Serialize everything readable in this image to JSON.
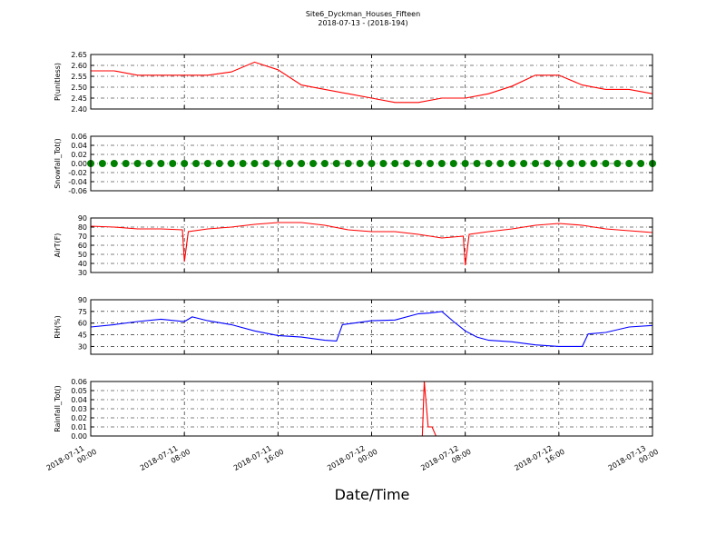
{
  "chart_data": [
    {
      "type": "line",
      "title": "Site6_Dyckman_Houses_Fifteen",
      "subtitle": "2018-07-13 - (2018-194)",
      "ylabel": "P(unitless)",
      "xlim": [
        "2018-07-11 00:00",
        "2018-07-13 00:00"
      ],
      "xticks": [
        "2018-07-11 00:00",
        "2018-07-11 08:00",
        "2018-07-11 16:00",
        "2018-07-12 00:00",
        "2018-07-12 08:00",
        "2018-07-12 16:00",
        "2018-07-13 00:00"
      ],
      "ylim": [
        2.4,
        2.65
      ],
      "yticks": [
        {
          "value": 2.4,
          "label": "2.40"
        },
        2.45,
        {
          "value": 2.5,
          "label": "2.50"
        },
        2.55,
        {
          "value": 2.6,
          "label": "2.60"
        },
        2.65
      ],
      "grid": true,
      "x": [
        "2018-07-11 00:00",
        "2018-07-11 02:00",
        "2018-07-11 04:00",
        "2018-07-11 06:00",
        "2018-07-11 08:00",
        "2018-07-11 10:00",
        "2018-07-11 12:00",
        "2018-07-11 14:00",
        "2018-07-11 16:00",
        "2018-07-11 18:00",
        "2018-07-11 20:00",
        "2018-07-11 22:00",
        "2018-07-12 00:00",
        "2018-07-12 02:00",
        "2018-07-12 04:00",
        "2018-07-12 06:00",
        "2018-07-12 08:00",
        "2018-07-12 10:00",
        "2018-07-12 12:00",
        "2018-07-12 14:00",
        "2018-07-12 16:00",
        "2018-07-12 18:00",
        "2018-07-12 20:00",
        "2018-07-12 22:00",
        "2018-07-13 00:00"
      ],
      "series": [
        {
          "name": "P",
          "color": "#ff0000",
          "values": [
            2.575,
            2.575,
            2.555,
            2.555,
            2.555,
            2.555,
            2.57,
            2.615,
            2.58,
            2.51,
            2.49,
            2.47,
            2.45,
            2.43,
            2.43,
            2.45,
            2.45,
            2.47,
            2.505,
            2.555,
            2.555,
            2.51,
            2.49,
            2.49,
            2.47
          ]
        }
      ]
    },
    {
      "type": "scatter",
      "ylabel": "Snowfall_Tot()",
      "xlim": [
        "2018-07-11 00:00",
        "2018-07-13 00:00"
      ],
      "xticks": [
        "2018-07-11 00:00",
        "2018-07-11 08:00",
        "2018-07-11 16:00",
        "2018-07-12 00:00",
        "2018-07-12 08:00",
        "2018-07-12 16:00",
        "2018-07-13 00:00"
      ],
      "ylim": [
        -0.06,
        0.06
      ],
      "yticks": [
        -0.06,
        -0.04,
        -0.02,
        {
          "value": 0,
          "label": "0.00"
        },
        0.02,
        0.04,
        0.06
      ],
      "grid": true,
      "x": [
        "2018-07-11 00:00",
        "2018-07-11 01:00",
        "2018-07-11 02:00",
        "2018-07-11 03:00",
        "2018-07-11 04:00",
        "2018-07-11 05:00",
        "2018-07-11 06:00",
        "2018-07-11 07:00",
        "2018-07-11 08:00",
        "2018-07-11 09:00",
        "2018-07-11 10:00",
        "2018-07-11 11:00",
        "2018-07-11 12:00",
        "2018-07-11 13:00",
        "2018-07-11 14:00",
        "2018-07-11 15:00",
        "2018-07-11 16:00",
        "2018-07-11 17:00",
        "2018-07-11 18:00",
        "2018-07-11 19:00",
        "2018-07-11 20:00",
        "2018-07-11 21:00",
        "2018-07-11 22:00",
        "2018-07-11 23:00",
        "2018-07-12 00:00",
        "2018-07-12 01:00",
        "2018-07-12 02:00",
        "2018-07-12 03:00",
        "2018-07-12 04:00",
        "2018-07-12 05:00",
        "2018-07-12 06:00",
        "2018-07-12 07:00",
        "2018-07-12 08:00",
        "2018-07-12 09:00",
        "2018-07-12 10:00",
        "2018-07-12 11:00",
        "2018-07-12 12:00",
        "2018-07-12 13:00",
        "2018-07-12 14:00",
        "2018-07-12 15:00",
        "2018-07-12 16:00",
        "2018-07-12 17:00",
        "2018-07-12 18:00",
        "2018-07-12 19:00",
        "2018-07-12 20:00",
        "2018-07-12 21:00",
        "2018-07-12 22:00",
        "2018-07-12 23:00",
        "2018-07-13 00:00"
      ],
      "series": [
        {
          "name": "Snowfall_Tot",
          "color": "#008000",
          "values": [
            0,
            0,
            0,
            0,
            0,
            0,
            0,
            0,
            0,
            0,
            0,
            0,
            0,
            0,
            0,
            0,
            0,
            0,
            0,
            0,
            0,
            0,
            0,
            0,
            0,
            0,
            0,
            0,
            0,
            0,
            0,
            0,
            0,
            0,
            0,
            0,
            0,
            0,
            0,
            0,
            0,
            0,
            0,
            0,
            0,
            0,
            0,
            0,
            0
          ]
        }
      ]
    },
    {
      "type": "line",
      "ylabel": "AirT(F)",
      "xlim": [
        "2018-07-11 00:00",
        "2018-07-13 00:00"
      ],
      "xticks": [
        "2018-07-11 00:00",
        "2018-07-11 08:00",
        "2018-07-11 16:00",
        "2018-07-12 00:00",
        "2018-07-12 08:00",
        "2018-07-12 16:00",
        "2018-07-13 00:00"
      ],
      "ylim": [
        30,
        90
      ],
      "yticks": [
        30,
        40,
        50,
        60,
        70,
        80,
        90
      ],
      "grid": true,
      "x": [
        "2018-07-11 00:00",
        "2018-07-11 02:00",
        "2018-07-11 04:00",
        "2018-07-11 06:00",
        "2018-07-11 07:50",
        "2018-07-11 08:00",
        "2018-07-11 08:20",
        "2018-07-11 10:00",
        "2018-07-11 12:00",
        "2018-07-11 14:00",
        "2018-07-11 16:00",
        "2018-07-11 18:00",
        "2018-07-11 20:00",
        "2018-07-11 22:00",
        "2018-07-12 00:00",
        "2018-07-12 02:00",
        "2018-07-12 04:00",
        "2018-07-12 06:00",
        "2018-07-12 07:50",
        "2018-07-12 08:00",
        "2018-07-12 08:20",
        "2018-07-12 10:00",
        "2018-07-12 12:00",
        "2018-07-12 14:00",
        "2018-07-12 16:00",
        "2018-07-12 18:00",
        "2018-07-12 20:00",
        "2018-07-12 22:00",
        "2018-07-13 00:00"
      ],
      "series": [
        {
          "name": "AirT",
          "color": "#ff0000",
          "values": [
            81,
            80,
            78,
            78,
            77,
            42,
            75,
            78,
            80,
            83,
            85,
            85,
            82,
            77,
            75,
            75,
            72,
            68,
            70,
            38,
            72,
            75,
            78,
            82,
            84,
            82,
            78,
            76,
            74
          ]
        }
      ]
    },
    {
      "type": "line",
      "ylabel": "RH(%)",
      "xlim": [
        "2018-07-11 00:00",
        "2018-07-13 00:00"
      ],
      "xticks": [
        "2018-07-11 00:00",
        "2018-07-11 08:00",
        "2018-07-11 16:00",
        "2018-07-12 00:00",
        "2018-07-12 08:00",
        "2018-07-12 16:00",
        "2018-07-13 00:00"
      ],
      "ylim": [
        20,
        90
      ],
      "yticks": [
        30,
        45,
        60,
        75,
        90
      ],
      "grid": true,
      "x": [
        "2018-07-11 00:00",
        "2018-07-11 02:00",
        "2018-07-11 04:00",
        "2018-07-11 06:00",
        "2018-07-11 08:00",
        "2018-07-11 08:40",
        "2018-07-11 10:00",
        "2018-07-11 12:00",
        "2018-07-11 14:00",
        "2018-07-11 16:00",
        "2018-07-11 18:00",
        "2018-07-11 20:00",
        "2018-07-11 21:00",
        "2018-07-11 21:30",
        "2018-07-12 00:00",
        "2018-07-12 02:00",
        "2018-07-12 04:00",
        "2018-07-12 05:00",
        "2018-07-12 06:00",
        "2018-07-12 07:00",
        "2018-07-12 08:00",
        "2018-07-12 09:00",
        "2018-07-12 10:00",
        "2018-07-12 12:00",
        "2018-07-12 14:00",
        "2018-07-12 16:00",
        "2018-07-12 18:00",
        "2018-07-12 18:30",
        "2018-07-12 20:00",
        "2018-07-12 22:00",
        "2018-07-13 00:00"
      ],
      "series": [
        {
          "name": "RH",
          "color": "#0000ff",
          "values": [
            55,
            58,
            62,
            65,
            62,
            68,
            63,
            58,
            50,
            44,
            42,
            38,
            37,
            58,
            63,
            64,
            72,
            73,
            75,
            62,
            50,
            42,
            38,
            36,
            32,
            30,
            30,
            46,
            48,
            55,
            57
          ]
        }
      ]
    },
    {
      "type": "line",
      "ylabel": "Rainfall_Tot()",
      "xlabel": "Date/Time",
      "xlim": [
        "2018-07-11 00:00",
        "2018-07-13 00:00"
      ],
      "xticks": [
        {
          "value": "2018-07-11 00:00",
          "label": [
            "2018-07-11",
            "00:00"
          ]
        },
        {
          "value": "2018-07-11 08:00",
          "label": [
            "2018-07-11",
            "08:00"
          ]
        },
        {
          "value": "2018-07-11 16:00",
          "label": [
            "2018-07-11",
            "16:00"
          ]
        },
        {
          "value": "2018-07-12 00:00",
          "label": [
            "2018-07-12",
            "00:00"
          ]
        },
        {
          "value": "2018-07-12 08:00",
          "label": [
            "2018-07-12",
            "08:00"
          ]
        },
        {
          "value": "2018-07-12 16:00",
          "label": [
            "2018-07-12",
            "16:00"
          ]
        },
        {
          "value": "2018-07-13 00:00",
          "label": [
            "2018-07-13",
            "00:00"
          ]
        }
      ],
      "ylim": [
        0,
        0.06
      ],
      "yticks": [
        {
          "value": 0,
          "label": "0.00"
        },
        0.01,
        0.02,
        0.03,
        0.04,
        0.05,
        0.06
      ],
      "grid": true,
      "x": [
        "2018-07-11 00:00",
        "2018-07-12 04:20",
        "2018-07-12 04:30",
        "2018-07-12 04:50",
        "2018-07-12 05:10",
        "2018-07-12 05:30",
        "2018-07-13 00:00"
      ],
      "series": [
        {
          "name": "Rainfall_Tot",
          "color": "#ff0000",
          "values": [
            0,
            0,
            0.06,
            0.01,
            0.01,
            0,
            0
          ]
        }
      ]
    }
  ]
}
